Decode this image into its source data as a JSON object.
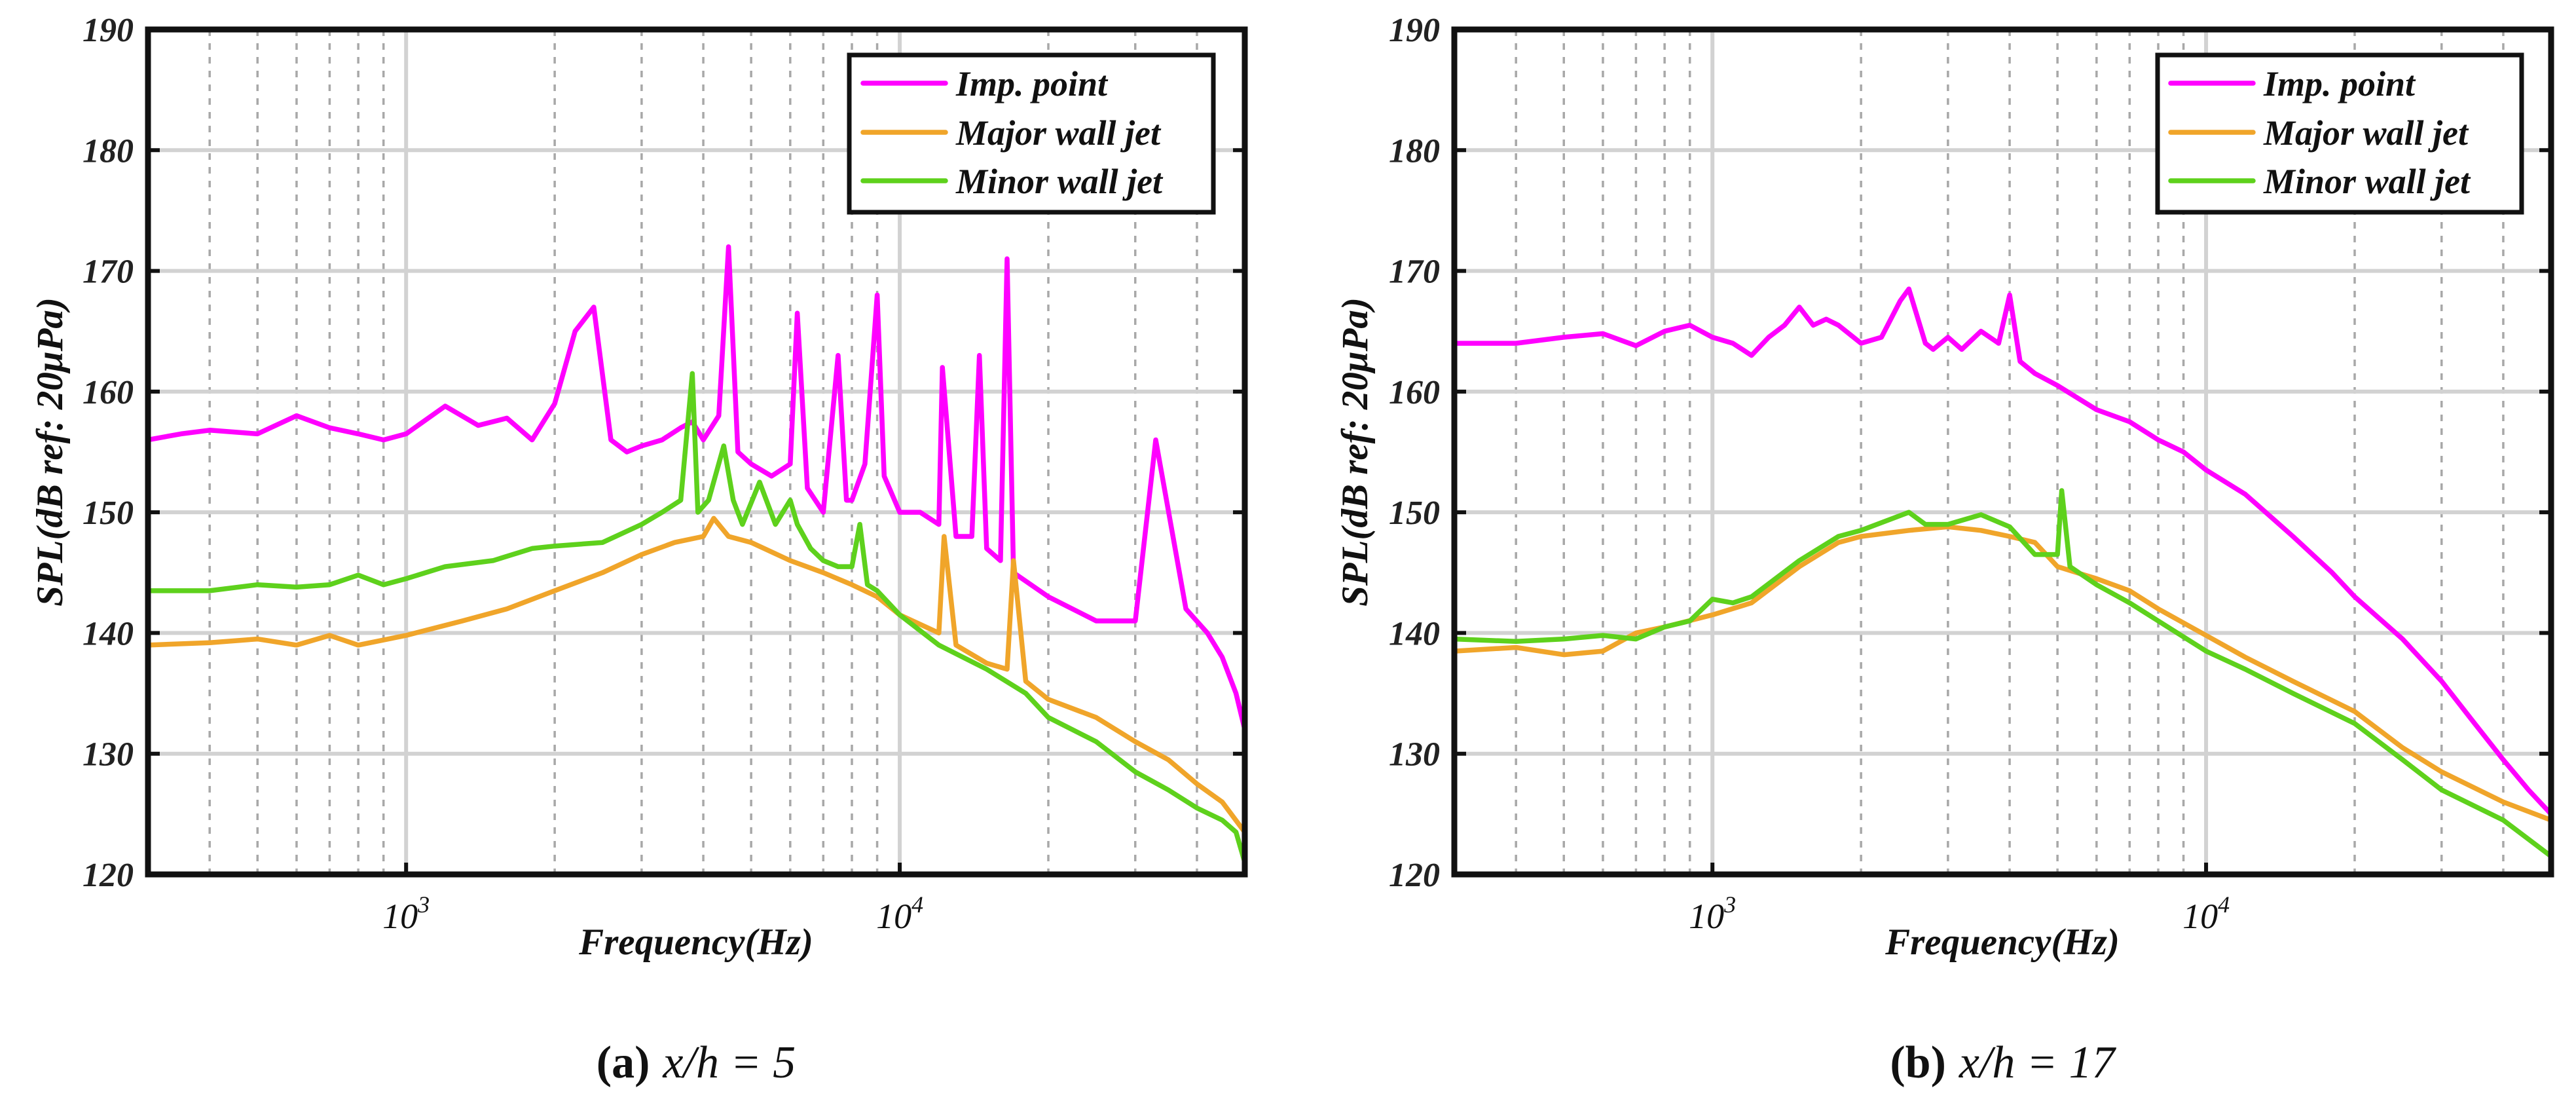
{
  "chart_data": [
    {
      "type": "line",
      "panel_label": "(a)",
      "subtitle": "x/h = 5",
      "xlabel": "Frequency(Hz)",
      "ylabel": "SPL(dB ref: 20μPa)",
      "xscale": "log",
      "xlim": [
        300,
        50000
      ],
      "ylim": [
        120,
        190
      ],
      "yticks": [
        "120",
        "130",
        "140",
        "150",
        "160",
        "170",
        "180",
        "190"
      ],
      "xticks": [
        {
          "base": "10",
          "exp": "3",
          "value": 1000
        },
        {
          "base": "10",
          "exp": "4",
          "value": 10000
        }
      ],
      "grid": true,
      "legend_position": "top-right",
      "series": [
        {
          "name": "Imp. point",
          "color": "#ff00ff",
          "x": [
            300,
            350,
            400,
            500,
            600,
            700,
            800,
            900,
            1000,
            1200,
            1400,
            1600,
            1800,
            2000,
            2200,
            2400,
            2600,
            2800,
            3000,
            3300,
            3600,
            3800,
            4000,
            4300,
            4500,
            4700,
            5000,
            5500,
            6000,
            6200,
            6500,
            7000,
            7500,
            7800,
            8000,
            8500,
            9000,
            9300,
            10000,
            11000,
            12000,
            12200,
            13000,
            14000,
            14500,
            15000,
            16000,
            16500,
            17000,
            20000,
            25000,
            30000,
            33000,
            38000,
            42000,
            45000,
            48000,
            50000
          ],
          "y": [
            156,
            156.5,
            156.8,
            156.5,
            158,
            157,
            156.5,
            156,
            156.5,
            158.8,
            157.2,
            157.8,
            156,
            159,
            165,
            167,
            156,
            155,
            155.5,
            156,
            157,
            157.5,
            156,
            158,
            172,
            155,
            154,
            153,
            154,
            166.5,
            152,
            150,
            163,
            151,
            151,
            154,
            168,
            153,
            150,
            150,
            149,
            162,
            148,
            148,
            163,
            147,
            146,
            171,
            145,
            143,
            141,
            141,
            156,
            142,
            140,
            138,
            135,
            132
          ]
        },
        {
          "name": "Major wall jet",
          "color": "#f0a52a",
          "x": [
            300,
            400,
            500,
            600,
            700,
            800,
            1000,
            1300,
            1600,
            2000,
            2500,
            3000,
            3500,
            4000,
            4200,
            4500,
            5000,
            6000,
            7000,
            8000,
            9000,
            10000,
            12000,
            12300,
            13000,
            15000,
            16500,
            17000,
            18000,
            20000,
            25000,
            30000,
            35000,
            40000,
            45000,
            50000
          ],
          "y": [
            139,
            139.2,
            139.5,
            139,
            139.8,
            139,
            139.8,
            141,
            142,
            143.5,
            145,
            146.5,
            147.5,
            148,
            149.5,
            148,
            147.5,
            146,
            145,
            144,
            143,
            141.5,
            140,
            148,
            139,
            137.5,
            137,
            146,
            136,
            134.5,
            133,
            131,
            129.5,
            127.5,
            126,
            123.5
          ]
        },
        {
          "name": "Minor wall jet",
          "color": "#5ed11c",
          "x": [
            300,
            400,
            500,
            600,
            700,
            800,
            900,
            1000,
            1200,
            1500,
            1800,
            2000,
            2500,
            3000,
            3300,
            3600,
            3800,
            3900,
            4100,
            4400,
            4600,
            4800,
            5200,
            5600,
            6000,
            6200,
            6600,
            7000,
            7500,
            8000,
            8300,
            8600,
            9000,
            10000,
            12000,
            15000,
            18000,
            20000,
            25000,
            30000,
            35000,
            40000,
            45000,
            48000,
            50000
          ],
          "y": [
            143.5,
            143.5,
            144,
            143.8,
            144,
            144.8,
            144,
            144.5,
            145.5,
            146,
            147,
            147.2,
            147.5,
            149,
            150,
            151,
            161.5,
            150,
            151,
            155.5,
            151,
            149,
            152.5,
            149,
            151,
            149,
            147,
            146,
            145.5,
            145.5,
            149,
            144,
            143.5,
            141.5,
            139,
            137,
            135,
            133,
            131,
            128.5,
            127,
            125.5,
            124.5,
            123.5,
            121
          ]
        }
      ]
    },
    {
      "type": "line",
      "panel_label": "(b)",
      "subtitle": "x/h = 17",
      "xlabel": "Frequency(Hz)",
      "ylabel": "SPL(dB ref: 20μPa)",
      "xscale": "log",
      "xlim": [
        300,
        50000
      ],
      "ylim": [
        120,
        190
      ],
      "yticks": [
        "120",
        "130",
        "140",
        "150",
        "160",
        "170",
        "180",
        "190"
      ],
      "xticks": [
        {
          "base": "10",
          "exp": "3",
          "value": 1000
        },
        {
          "base": "10",
          "exp": "4",
          "value": 10000
        }
      ],
      "grid": true,
      "legend_position": "top-right",
      "series": [
        {
          "name": "Imp. point",
          "color": "#ff00ff",
          "x": [
            300,
            400,
            500,
            600,
            700,
            800,
            900,
            1000,
            1100,
            1200,
            1300,
            1400,
            1500,
            1600,
            1700,
            1800,
            2000,
            2200,
            2400,
            2500,
            2700,
            2800,
            3000,
            3200,
            3500,
            3800,
            4000,
            4200,
            4500,
            5000,
            6000,
            7000,
            8000,
            9000,
            10000,
            12000,
            15000,
            18000,
            20000,
            25000,
            30000,
            35000,
            40000,
            45000,
            50000
          ],
          "y": [
            164,
            164,
            164.5,
            164.8,
            163.8,
            165,
            165.5,
            164.5,
            164,
            163,
            164.5,
            165.5,
            167,
            165.5,
            166,
            165.5,
            164,
            164.5,
            167.5,
            168.5,
            164,
            163.5,
            164.5,
            163.5,
            165,
            164,
            168,
            162.5,
            161.5,
            160.5,
            158.5,
            157.5,
            156,
            155,
            153.5,
            151.5,
            148,
            145,
            143,
            139.5,
            136,
            132.5,
            129.5,
            127,
            125
          ]
        },
        {
          "name": "Major wall jet",
          "color": "#f0a52a",
          "x": [
            300,
            400,
            500,
            600,
            700,
            800,
            1000,
            1200,
            1500,
            1800,
            2000,
            2500,
            3000,
            3500,
            4000,
            4500,
            5000,
            6000,
            7000,
            8000,
            10000,
            12000,
            15000,
            20000,
            25000,
            30000,
            40000,
            50000
          ],
          "y": [
            138.5,
            138.8,
            138.2,
            138.5,
            140,
            140.5,
            141.5,
            142.5,
            145.5,
            147.5,
            148,
            148.5,
            148.8,
            148.5,
            148,
            147.5,
            145.5,
            144.5,
            143.5,
            142,
            139.8,
            138,
            136,
            133.5,
            130.5,
            128.5,
            126,
            124.5
          ]
        },
        {
          "name": "Minor wall jet",
          "color": "#5ed11c",
          "x": [
            300,
            400,
            500,
            600,
            700,
            800,
            900,
            1000,
            1100,
            1200,
            1500,
            1800,
            2000,
            2500,
            2700,
            3000,
            3500,
            4000,
            4500,
            5000,
            5100,
            5300,
            6000,
            7000,
            8000,
            10000,
            12000,
            15000,
            20000,
            25000,
            30000,
            40000,
            50000
          ],
          "y": [
            139.5,
            139.3,
            139.5,
            139.8,
            139.5,
            140.5,
            141,
            142.8,
            142.5,
            143,
            146,
            148,
            148.5,
            150,
            149,
            149,
            149.8,
            148.8,
            146.5,
            146.5,
            151.8,
            145.5,
            144,
            142.5,
            141,
            138.5,
            137,
            135,
            132.5,
            129.5,
            127,
            124.5,
            121.5
          ]
        }
      ]
    }
  ]
}
